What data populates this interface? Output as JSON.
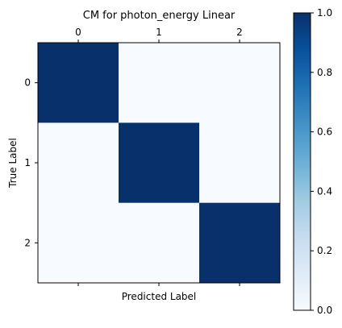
{
  "chart_data": {
    "type": "heatmap",
    "title": "CM for photon_energy Linear",
    "xlabel": "Predicted Label",
    "ylabel": "True Label",
    "x_ticks": [
      "0",
      "1",
      "2"
    ],
    "y_ticks": [
      "0",
      "1",
      "2"
    ],
    "x_tick_position": "top",
    "matrix": [
      [
        1.0,
        0.0,
        0.0
      ],
      [
        0.0,
        1.0,
        0.0
      ],
      [
        0.0,
        0.0,
        1.0
      ]
    ],
    "colorscale": "Blues",
    "vmin": 0.0,
    "vmax": 1.0,
    "colorbar_ticks": [
      "0.0",
      "0.2",
      "0.4",
      "0.6",
      "0.8",
      "1.0"
    ],
    "grid": false,
    "colors": {
      "low": "#f7fbff",
      "high": "#08306b"
    }
  }
}
